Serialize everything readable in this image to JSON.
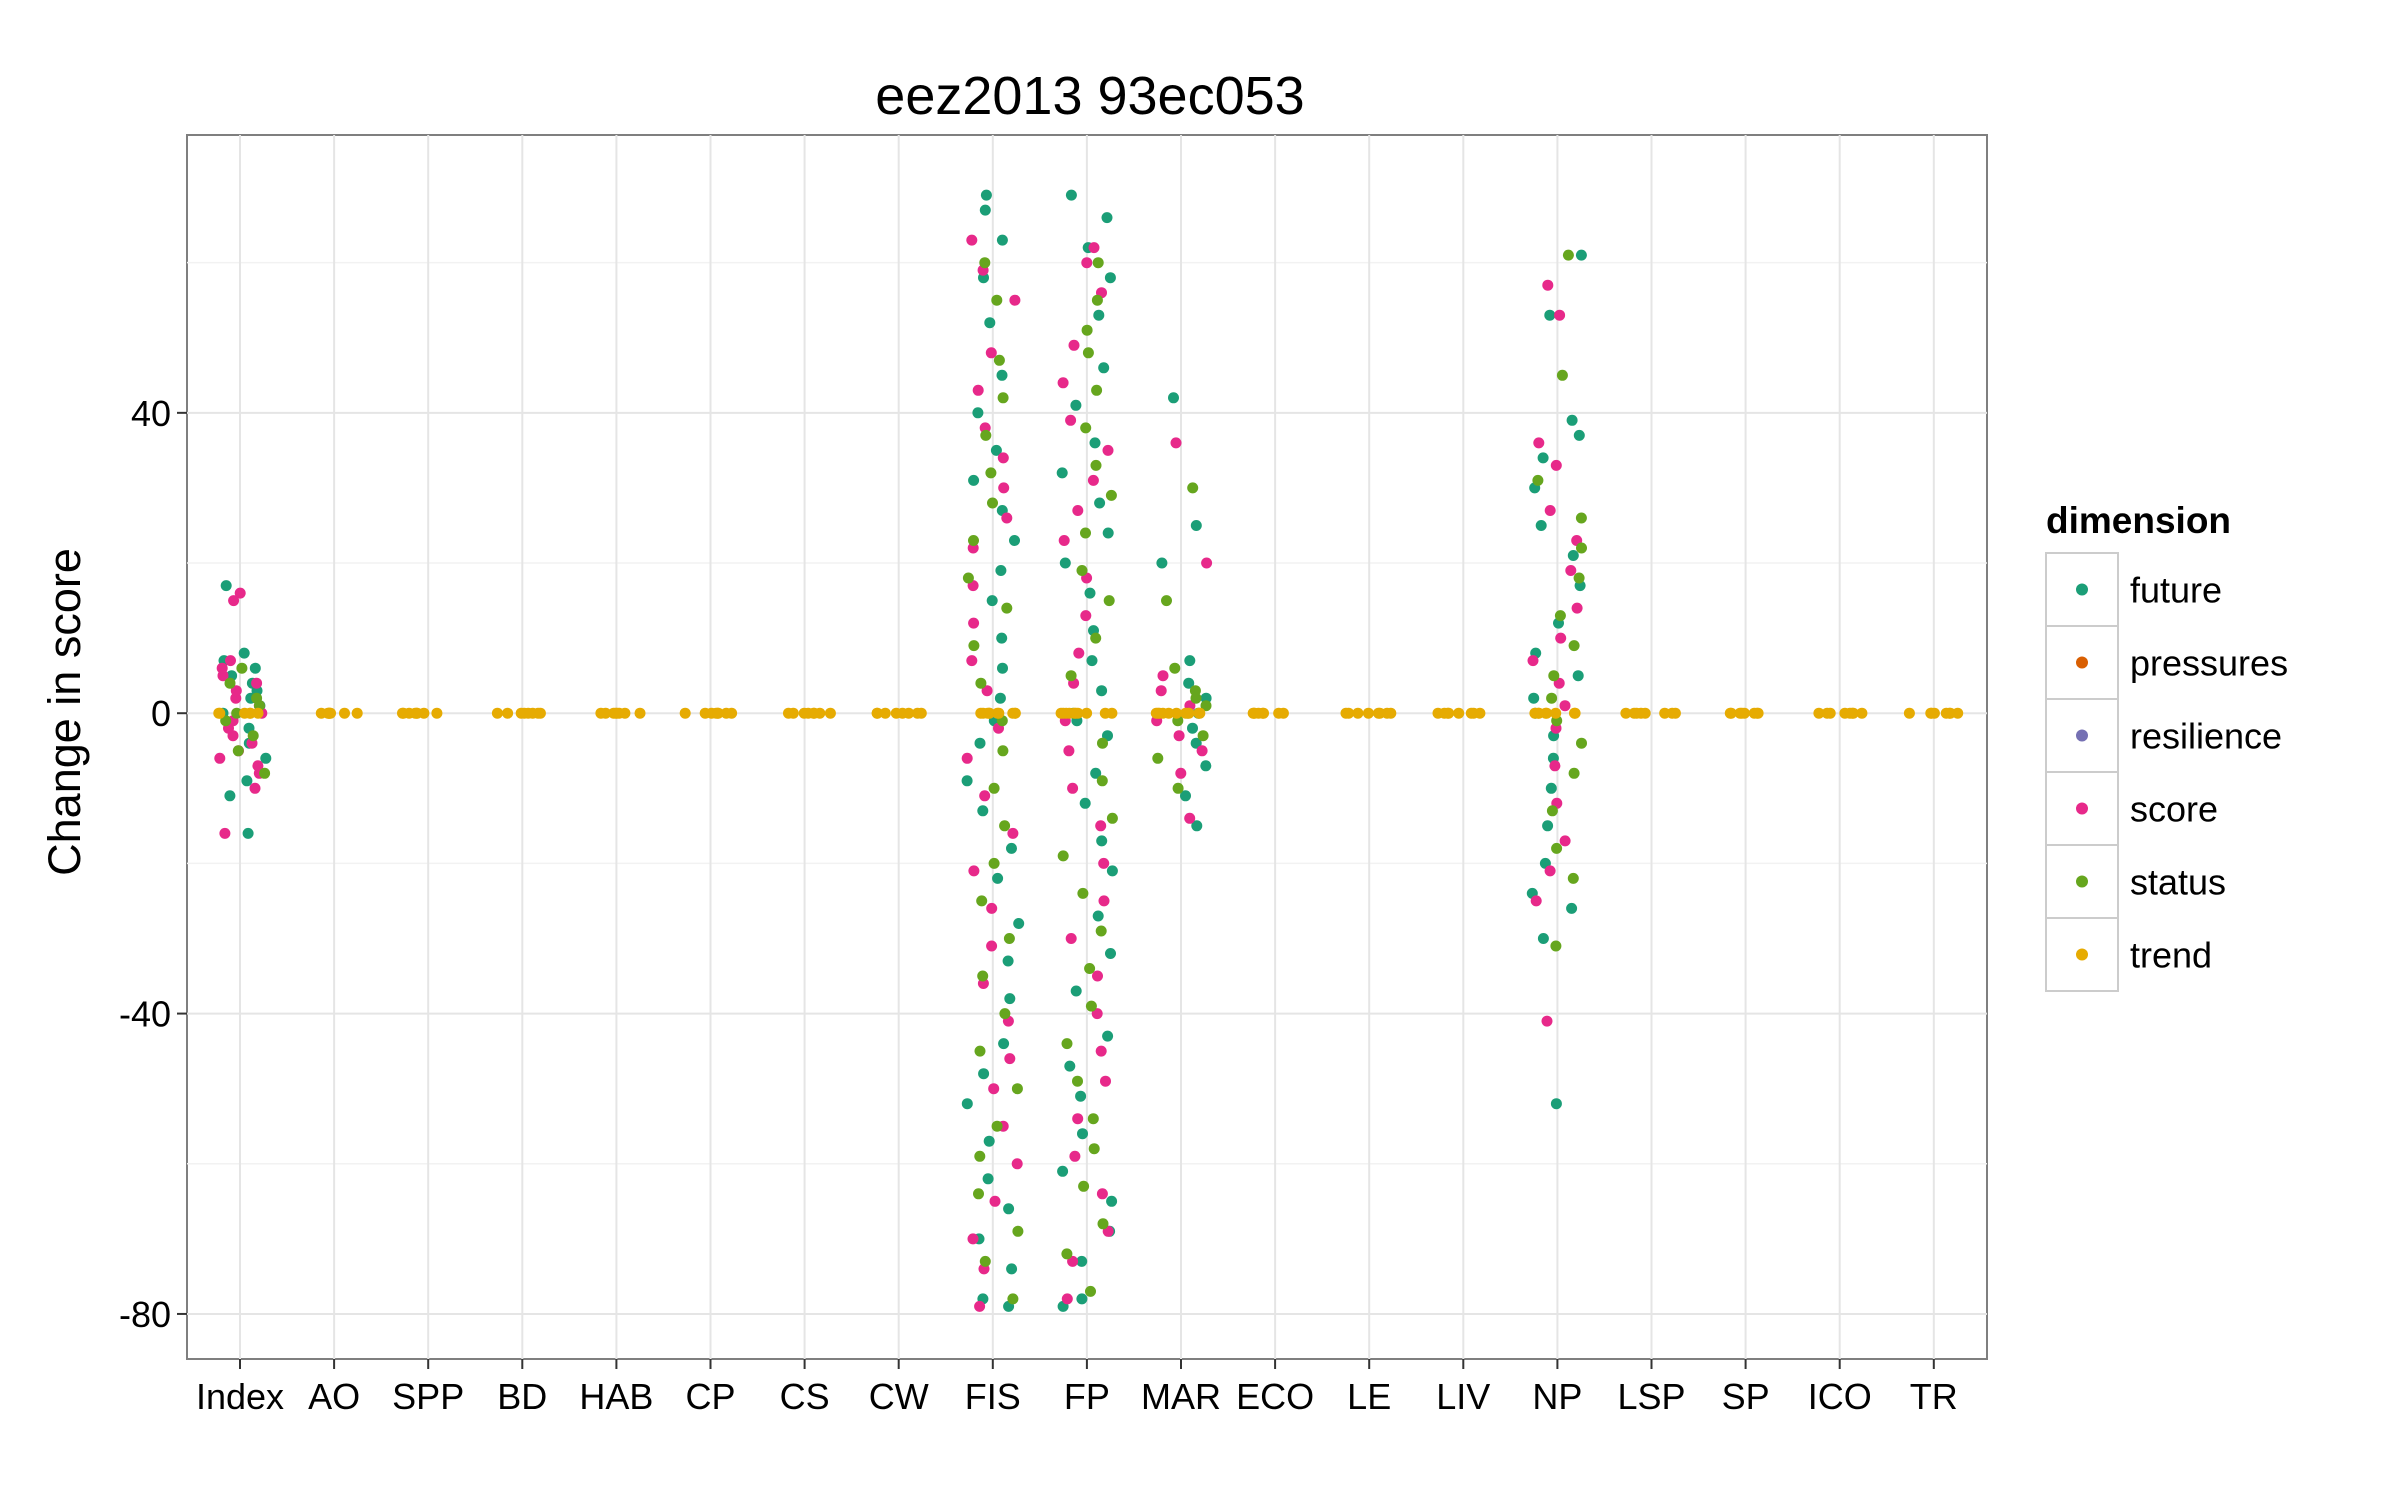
{
  "chart_data": {
    "type": "scatter",
    "title": "eez2013 93ec053",
    "xlabel": "",
    "ylabel": "Change in score",
    "categories": [
      "Index",
      "AO",
      "SPP",
      "BD",
      "HAB",
      "CP",
      "CS",
      "CW",
      "FIS",
      "FP",
      "MAR",
      "ECO",
      "LE",
      "LIV",
      "NP",
      "LSP",
      "SP",
      "ICO",
      "TR"
    ],
    "ylim": [
      -86,
      77
    ],
    "yticks": [
      40,
      0,
      -40,
      -80
    ],
    "grid": true,
    "legend": {
      "title": "dimension",
      "placement": "right",
      "entries": [
        {
          "name": "future",
          "color": "#1b9e77"
        },
        {
          "name": "pressures",
          "color": "#d95f02"
        },
        {
          "name": "resilience",
          "color": "#7570b3"
        },
        {
          "name": "score",
          "color": "#e7298a"
        },
        {
          "name": "status",
          "color": "#66a61e"
        },
        {
          "name": "trend",
          "color": "#e6ab02"
        }
      ]
    },
    "groups": {
      "Index": {
        "future": [
          -16,
          -11,
          -9,
          -6,
          -4,
          -2,
          0,
          1,
          2,
          3,
          4,
          5,
          6,
          7,
          8,
          17
        ],
        "score": [
          -16,
          -10,
          -8,
          -7,
          -6,
          -5,
          -4,
          -3,
          -2,
          -1,
          0,
          1,
          2,
          3,
          4,
          5,
          6,
          7,
          15,
          16
        ],
        "status": [
          -8,
          -5,
          -3,
          -1,
          0,
          1,
          2,
          4,
          6
        ],
        "trend": [
          0,
          0,
          0,
          0,
          0,
          0
        ]
      },
      "AO": {
        "trend": [
          0,
          0,
          0,
          0,
          0,
          0,
          0,
          0
        ]
      },
      "SPP": {
        "trend": [
          0,
          0,
          0,
          0,
          0,
          0,
          0,
          0
        ]
      },
      "BD": {
        "trend": [
          0,
          0,
          0,
          0,
          0,
          0,
          0,
          0
        ]
      },
      "HAB": {
        "trend": [
          0,
          0,
          0,
          0,
          0,
          0,
          0,
          0
        ]
      },
      "CP": {
        "trend": [
          0,
          0,
          0,
          0,
          0,
          0,
          0,
          0
        ]
      },
      "CS": {
        "trend": [
          0,
          0,
          0,
          0,
          0,
          0,
          0,
          0
        ]
      },
      "CW": {
        "trend": [
          0,
          0,
          0,
          0,
          0,
          0,
          0,
          0
        ]
      },
      "FIS": {
        "future": [
          -79,
          -78,
          -74,
          -70,
          -66,
          -62,
          -57,
          -52,
          -48,
          -44,
          -38,
          -33,
          -28,
          -22,
          -18,
          -13,
          -9,
          -4,
          -1,
          2,
          6,
          10,
          15,
          19,
          23,
          27,
          31,
          35,
          40,
          45,
          52,
          58,
          63,
          67,
          69
        ],
        "score": [
          -79,
          -74,
          -70,
          -65,
          -60,
          -55,
          -50,
          -46,
          -41,
          -36,
          -31,
          -26,
          -21,
          -16,
          -11,
          -6,
          -2,
          3,
          7,
          12,
          17,
          22,
          26,
          30,
          34,
          38,
          43,
          48,
          55,
          59,
          63
        ],
        "status": [
          -78,
          -73,
          -69,
          -64,
          -59,
          -55,
          -50,
          -45,
          -40,
          -35,
          -30,
          -25,
          -20,
          -15,
          -10,
          -5,
          -1,
          4,
          9,
          14,
          18,
          23,
          28,
          32,
          37,
          42,
          47,
          55,
          60
        ],
        "trend": [
          0,
          0,
          0,
          0,
          0,
          0,
          0,
          0,
          0,
          0
        ]
      },
      "FP": {
        "future": [
          -79,
          -78,
          -73,
          -69,
          -65,
          -61,
          -56,
          -51,
          -47,
          -43,
          -37,
          -32,
          -27,
          -21,
          -17,
          -12,
          -8,
          -3,
          -1,
          3,
          7,
          11,
          16,
          20,
          24,
          28,
          32,
          36,
          41,
          46,
          53,
          58,
          62,
          66,
          69
        ],
        "score": [
          -78,
          -73,
          -69,
          -64,
          -59,
          -54,
          -49,
          -45,
          -40,
          -35,
          -30,
          -25,
          -20,
          -15,
          -10,
          -5,
          -1,
          4,
          8,
          13,
          18,
          23,
          27,
          31,
          35,
          39,
          44,
          49,
          56,
          60,
          62
        ],
        "status": [
          -77,
          -72,
          -68,
          -63,
          -58,
          -54,
          -49,
          -44,
          -39,
          -34,
          -29,
          -24,
          -19,
          -14,
          -9,
          -4,
          0,
          5,
          10,
          15,
          19,
          24,
          29,
          33,
          38,
          43,
          48,
          51,
          55,
          60
        ],
        "trend": [
          0,
          0,
          0,
          0,
          0,
          0,
          0,
          0,
          0,
          0
        ]
      },
      "MAR": {
        "future": [
          -15,
          -11,
          -7,
          -4,
          -2,
          0,
          2,
          4,
          7,
          20,
          25,
          42
        ],
        "score": [
          -14,
          -8,
          -5,
          -3,
          -1,
          1,
          3,
          5,
          20,
          36
        ],
        "status": [
          -10,
          -6,
          -3,
          -1,
          0,
          1,
          2,
          3,
          6,
          15,
          30
        ],
        "trend": [
          0,
          0,
          0,
          0,
          0,
          0,
          0,
          0,
          0,
          0
        ]
      },
      "NP": {
        "future": [
          -52,
          -30,
          -26,
          -24,
          -20,
          -15,
          -10,
          -6,
          -3,
          0,
          2,
          5,
          8,
          12,
          17,
          21,
          25,
          30,
          34,
          37,
          39,
          53,
          61
        ],
        "score": [
          -41,
          -25,
          -21,
          -17,
          -12,
          -7,
          -2,
          1,
          4,
          7,
          10,
          14,
          19,
          23,
          27,
          33,
          36,
          53,
          57
        ],
        "status": [
          -31,
          -22,
          -18,
          -13,
          -8,
          -4,
          -1,
          2,
          5,
          9,
          13,
          18,
          22,
          26,
          31,
          45,
          61
        ],
        "trend": [
          0,
          0,
          0,
          0,
          0,
          0,
          0,
          0
        ]
      },
      "ECO": {
        "trend": [
          0,
          0,
          0,
          0,
          0,
          0,
          0,
          0
        ]
      },
      "LE": {
        "trend": [
          0,
          0,
          0,
          0,
          0,
          0,
          0,
          0
        ]
      },
      "LIV": {
        "trend": [
          0,
          0,
          0,
          0,
          0,
          0,
          0,
          0
        ]
      },
      "LSP": {
        "trend": [
          0,
          0,
          0,
          0,
          0,
          0,
          0,
          0
        ]
      },
      "SP": {
        "trend": [
          0,
          0,
          0,
          0,
          0,
          0,
          0,
          0
        ]
      },
      "ICO": {
        "trend": [
          0,
          0,
          0,
          0,
          0,
          0,
          0,
          0
        ]
      },
      "TR": {
        "trend": [
          0,
          0,
          0,
          0,
          0,
          0,
          0,
          0
        ]
      }
    }
  }
}
